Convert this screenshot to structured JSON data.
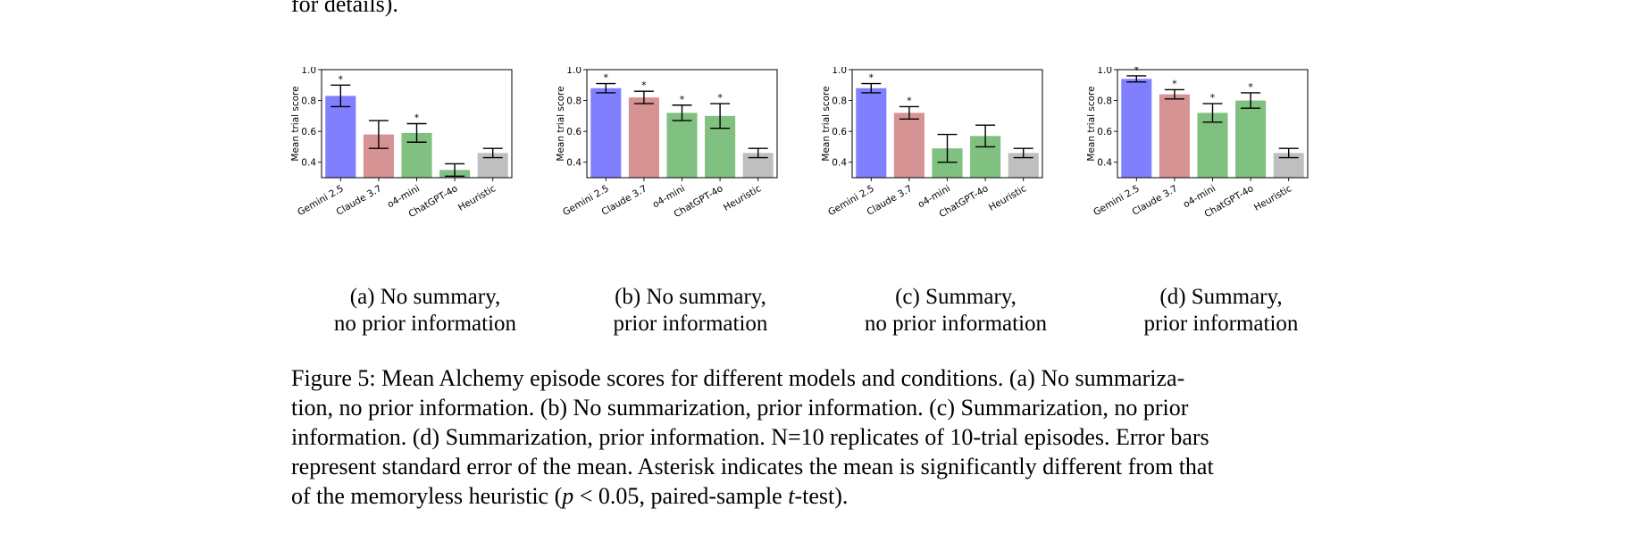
{
  "top_fragment": "for details).",
  "chart_data": [
    {
      "type": "bar",
      "panel_label": "(a) No summary,",
      "panel_label_line2": "no prior information",
      "ylabel": "Mean trial score",
      "ylim": [
        0.3,
        1.0
      ],
      "yticks": [
        "0.4",
        "0.6",
        "0.8",
        "1.0"
      ],
      "categories": [
        "Gemini 2.5",
        "Claude 3.7",
        "o4-mini",
        "ChatGPT-4o",
        "Heuristic"
      ],
      "values": [
        0.83,
        0.58,
        0.59,
        0.35,
        0.46
      ],
      "errors": [
        0.07,
        0.09,
        0.06,
        0.04,
        0.03
      ],
      "significant": [
        true,
        false,
        true,
        false,
        false
      ],
      "colors": [
        "#8080ff",
        "#d69393",
        "#80c080",
        "#80c080",
        "#bfbfbf"
      ]
    },
    {
      "type": "bar",
      "panel_label": "(b) No summary,",
      "panel_label_line2": "prior information",
      "ylabel": "Mean trial score",
      "ylim": [
        0.3,
        1.0
      ],
      "yticks": [
        "0.4",
        "0.6",
        "0.8",
        "1.0"
      ],
      "categories": [
        "Gemini 2.5",
        "Claude 3.7",
        "o4-mini",
        "ChatGPT-4o",
        "Heuristic"
      ],
      "values": [
        0.88,
        0.82,
        0.72,
        0.7,
        0.46
      ],
      "errors": [
        0.03,
        0.04,
        0.05,
        0.08,
        0.03
      ],
      "significant": [
        true,
        true,
        true,
        true,
        false
      ],
      "colors": [
        "#8080ff",
        "#d69393",
        "#80c080",
        "#80c080",
        "#bfbfbf"
      ]
    },
    {
      "type": "bar",
      "panel_label": "(c) Summary,",
      "panel_label_line2": "no prior information",
      "ylabel": "Mean trial score",
      "ylim": [
        0.3,
        1.0
      ],
      "yticks": [
        "0.4",
        "0.6",
        "0.8",
        "1.0"
      ],
      "categories": [
        "Gemini 2.5",
        "Claude 3.7",
        "o4-mini",
        "ChatGPT-4o",
        "Heuristic"
      ],
      "values": [
        0.88,
        0.72,
        0.49,
        0.57,
        0.46
      ],
      "errors": [
        0.03,
        0.04,
        0.09,
        0.07,
        0.03
      ],
      "significant": [
        true,
        true,
        false,
        false,
        false
      ],
      "colors": [
        "#8080ff",
        "#d69393",
        "#80c080",
        "#80c080",
        "#bfbfbf"
      ]
    },
    {
      "type": "bar",
      "panel_label": "(d) Summary,",
      "panel_label_line2": "prior information",
      "ylabel": "Mean trial score",
      "ylim": [
        0.3,
        1.0
      ],
      "yticks": [
        "0.4",
        "0.6",
        "0.8",
        "1.0"
      ],
      "categories": [
        "Gemini 2.5",
        "Claude 3.7",
        "o4-mini",
        "ChatGPT-4o",
        "Heuristic"
      ],
      "values": [
        0.94,
        0.84,
        0.72,
        0.8,
        0.46
      ],
      "errors": [
        0.02,
        0.03,
        0.06,
        0.05,
        0.03
      ],
      "significant": [
        true,
        true,
        true,
        true,
        false
      ],
      "colors": [
        "#8080ff",
        "#d69393",
        "#80c080",
        "#80c080",
        "#bfbfbf"
      ]
    }
  ],
  "caption": {
    "line1": "Figure 5: Mean Alchemy episode scores for different models and conditions. (a) No summariza-",
    "line2": "tion, no prior information. (b) No summarization, prior information. (c) Summarization, no prior",
    "line3": "information. (d) Summarization, prior information. N=10 replicates of 10-trial episodes. Error bars",
    "line4": "represent standard error of the mean. Asterisk indicates the mean is significantly different from that",
    "line5_prefix": "of the memoryless heuristic (",
    "line5_p": "p",
    "line5_inequality": " < 0.05",
    "line5_middle": ", paired-sample ",
    "line5_t": "t",
    "line5_suffix": "-test)."
  },
  "asterisk": "*"
}
